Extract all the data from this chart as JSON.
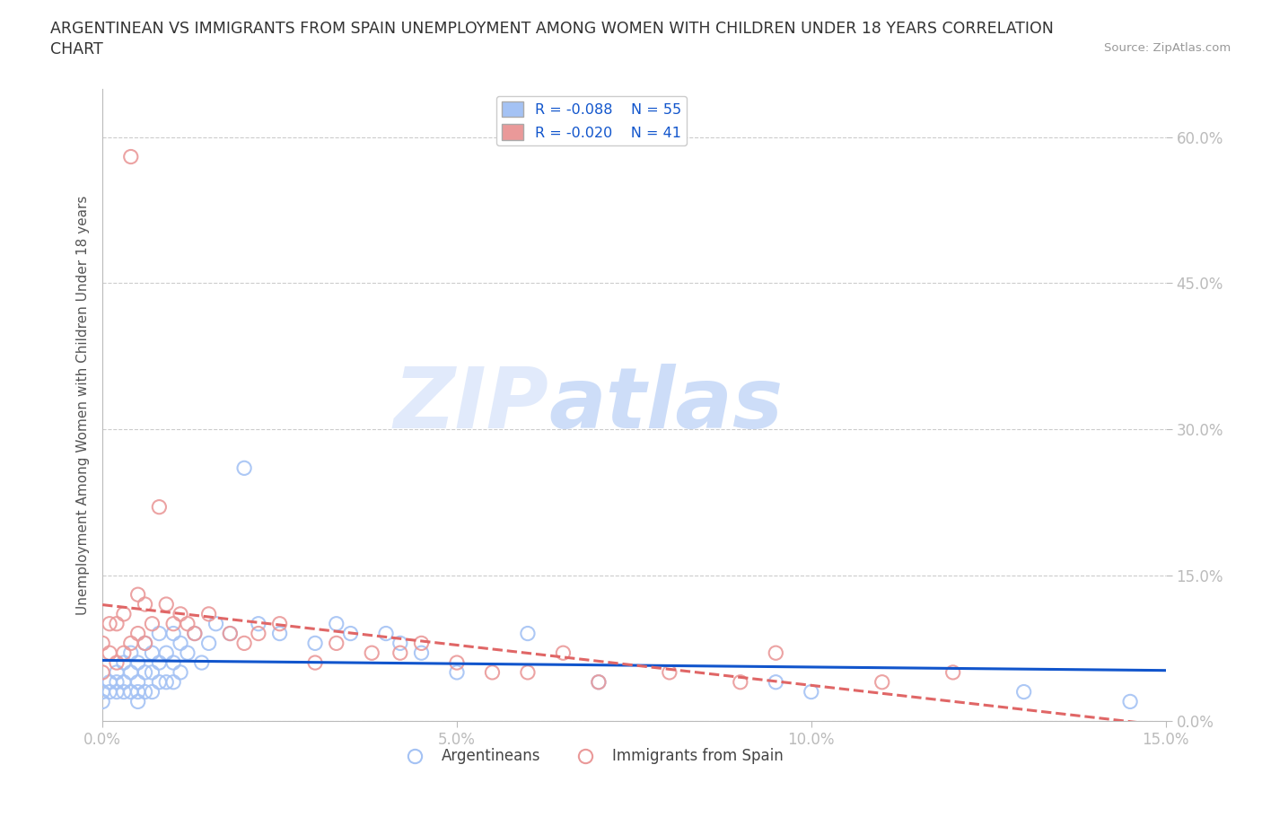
{
  "title_line1": "ARGENTINEAN VS IMMIGRANTS FROM SPAIN UNEMPLOYMENT AMONG WOMEN WITH CHILDREN UNDER 18 YEARS CORRELATION",
  "title_line2": "CHART",
  "source": "Source: ZipAtlas.com",
  "ylabel": "Unemployment Among Women with Children Under 18 years",
  "xlim": [
    0.0,
    0.15
  ],
  "ylim": [
    0.0,
    0.65
  ],
  "yticks": [
    0.0,
    0.15,
    0.3,
    0.45,
    0.6
  ],
  "ytick_labels": [
    "0.0%",
    "15.0%",
    "30.0%",
    "45.0%",
    "60.0%"
  ],
  "xticks": [
    0.0,
    0.05,
    0.1,
    0.15
  ],
  "xtick_labels": [
    "0.0%",
    "5.0%",
    "10.0%",
    "15.0%"
  ],
  "watermark_zip": "ZIP",
  "watermark_atlas": "atlas",
  "legend_r1": "R = -0.088",
  "legend_n1": "N = 55",
  "legend_r2": "R = -0.020",
  "legend_n2": "N = 41",
  "color_blue": "#a4c2f4",
  "color_pink": "#ea9999",
  "color_line_blue": "#1155cc",
  "color_line_pink": "#e06666",
  "background_color": "#ffffff",
  "grid_color": "#cccccc",
  "tick_color": "#4a86e8",
  "argentineans_x": [
    0.0,
    0.0,
    0.001,
    0.001,
    0.002,
    0.002,
    0.002,
    0.003,
    0.003,
    0.003,
    0.004,
    0.004,
    0.004,
    0.005,
    0.005,
    0.005,
    0.005,
    0.006,
    0.006,
    0.006,
    0.007,
    0.007,
    0.007,
    0.008,
    0.008,
    0.008,
    0.009,
    0.009,
    0.01,
    0.01,
    0.01,
    0.011,
    0.011,
    0.012,
    0.013,
    0.014,
    0.015,
    0.016,
    0.018,
    0.02,
    0.022,
    0.025,
    0.03,
    0.033,
    0.035,
    0.04,
    0.042,
    0.045,
    0.05,
    0.06,
    0.07,
    0.095,
    0.1,
    0.13,
    0.145
  ],
  "argentineans_y": [
    0.02,
    0.03,
    0.03,
    0.04,
    0.03,
    0.04,
    0.05,
    0.03,
    0.04,
    0.06,
    0.03,
    0.05,
    0.07,
    0.02,
    0.03,
    0.04,
    0.06,
    0.03,
    0.05,
    0.08,
    0.03,
    0.05,
    0.07,
    0.04,
    0.06,
    0.09,
    0.04,
    0.07,
    0.04,
    0.06,
    0.09,
    0.05,
    0.08,
    0.07,
    0.09,
    0.06,
    0.08,
    0.1,
    0.09,
    0.26,
    0.1,
    0.09,
    0.08,
    0.1,
    0.09,
    0.09,
    0.08,
    0.07,
    0.05,
    0.09,
    0.04,
    0.04,
    0.03,
    0.03,
    0.02
  ],
  "spain_x": [
    0.0,
    0.0,
    0.001,
    0.001,
    0.002,
    0.002,
    0.003,
    0.003,
    0.004,
    0.004,
    0.005,
    0.005,
    0.006,
    0.006,
    0.007,
    0.008,
    0.009,
    0.01,
    0.011,
    0.012,
    0.013,
    0.015,
    0.018,
    0.02,
    0.022,
    0.025,
    0.03,
    0.033,
    0.038,
    0.042,
    0.045,
    0.05,
    0.055,
    0.06,
    0.065,
    0.07,
    0.08,
    0.09,
    0.095,
    0.11,
    0.12
  ],
  "spain_y": [
    0.05,
    0.08,
    0.07,
    0.1,
    0.06,
    0.1,
    0.07,
    0.11,
    0.08,
    0.58,
    0.09,
    0.13,
    0.08,
    0.12,
    0.1,
    0.22,
    0.12,
    0.1,
    0.11,
    0.1,
    0.09,
    0.11,
    0.09,
    0.08,
    0.09,
    0.1,
    0.06,
    0.08,
    0.07,
    0.07,
    0.08,
    0.06,
    0.05,
    0.05,
    0.07,
    0.04,
    0.05,
    0.04,
    0.07,
    0.04,
    0.05
  ]
}
